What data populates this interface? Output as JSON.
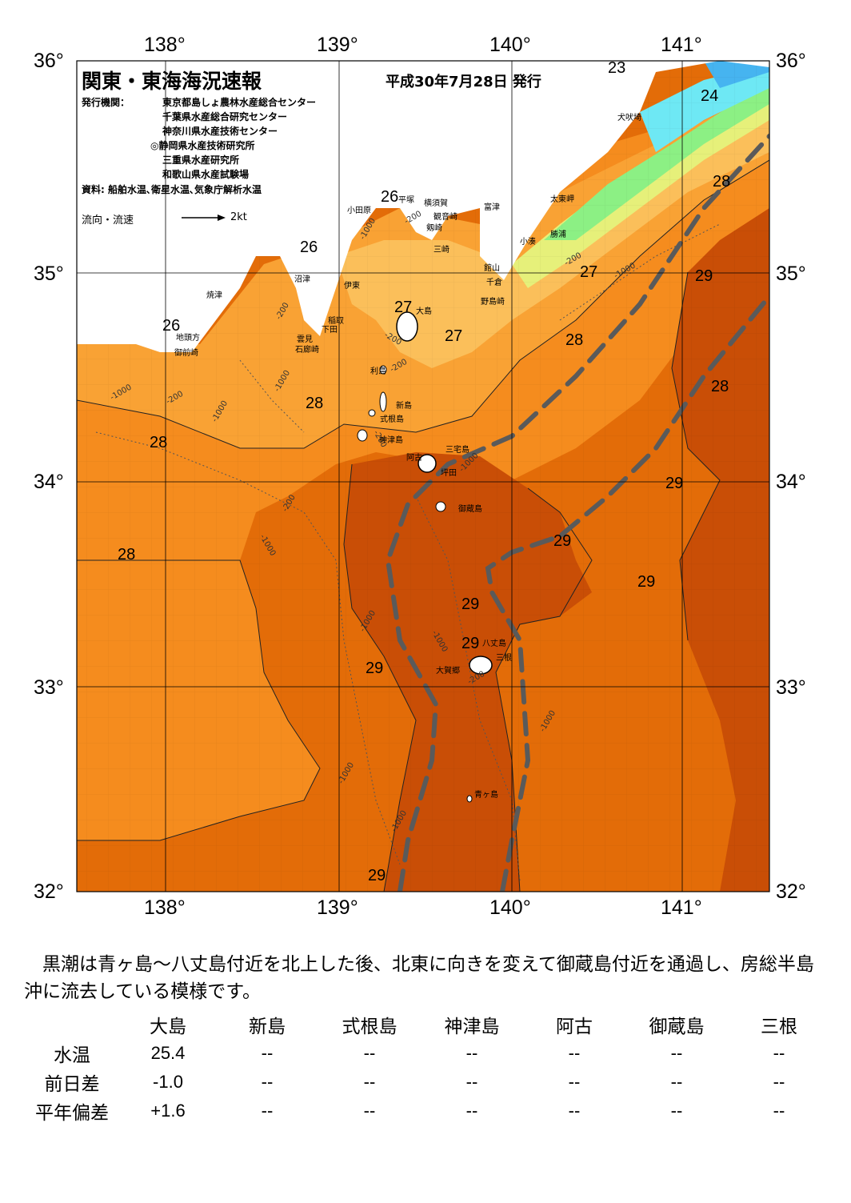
{
  "map": {
    "title": "関東・東海海況速報",
    "issue_date": "平成30年7月28日 発行",
    "issuers_label": "発行機関：",
    "issuers": [
      "東京都島しょ農林水産総合センター",
      "千葉県水産総合研究センター",
      "神奈川県水産技術センター",
      "◎静岡県水産技術研究所",
      "三重県水産研究所",
      "和歌山県水産試験場"
    ],
    "sources": "資料: 船舶水温､衛星水温､気象庁解析水温",
    "flow_legend": "流向・流速",
    "flow_scale": "2kt",
    "lon_labels": [
      "138°",
      "139°",
      "140°",
      "141°"
    ],
    "lat_labels": [
      "36°",
      "35°",
      "34°",
      "33°",
      "32°"
    ],
    "sst_labels": [
      "23",
      "24",
      "26",
      "26",
      "26",
      "27",
      "27",
      "27",
      "28",
      "28",
      "28",
      "28",
      "28",
      "28",
      "29",
      "29",
      "29",
      "29",
      "29",
      "29",
      "29",
      "29"
    ],
    "depth_labels": [
      "-1000",
      "-200",
      "-1000",
      "-200",
      "-1000",
      "-200",
      "-1000",
      "-200",
      "-1000",
      "-200",
      "-1000",
      "-1000",
      "-1000",
      "-1000",
      "-200",
      "-1000",
      "-1000",
      "-1000",
      "-200",
      "-200",
      "-200"
    ],
    "places": [
      "犬吠埼",
      "太東岬",
      "勝浦",
      "小湊",
      "富津",
      "館山",
      "千倉",
      "野島崎",
      "横須賀",
      "観音崎",
      "剱崎",
      "三崎",
      "平塚",
      "小田原",
      "沼津",
      "焼津",
      "伊東",
      "稲取",
      "下田",
      "雲見",
      "石廊崎",
      "地頭方",
      "御前崎",
      "大島",
      "利島",
      "新島",
      "式根島",
      "神津島",
      "三宅島",
      "阿古",
      "坪田",
      "御蔵島",
      "八丈島",
      "三根",
      "大賀郷",
      "青ヶ島"
    ],
    "colors": {
      "t23": "#46b4f0",
      "t24": "#6ee8f4",
      "t25": "#8cf084",
      "t26": "#e6f07a",
      "t27": "#fbbf5a",
      "t28": "#f9a234",
      "t28b": "#f58c1e",
      "t29": "#e36c08",
      "t29b": "#c94e06",
      "kuroshio": "#5a5a5a",
      "land": "#ffffff"
    }
  },
  "description": "黒潮は青ヶ島～八丈島付近を北上した後、北東に向きを変えて御蔵島付近を通過し、房総半島沖に流去している模様です。",
  "table": {
    "columns": [
      "大島",
      "新島",
      "式根島",
      "神津島",
      "阿古",
      "御蔵島",
      "三根"
    ],
    "rows": [
      {
        "label": "水温",
        "values": [
          "25.4",
          "--",
          "--",
          "--",
          "--",
          "--",
          "--"
        ]
      },
      {
        "label": "前日差",
        "values": [
          "-1.0",
          "--",
          "--",
          "--",
          "--",
          "--",
          "--"
        ]
      },
      {
        "label": "平年偏差",
        "values": [
          "+1.6",
          "--",
          "--",
          "--",
          "--",
          "--",
          "--"
        ]
      }
    ]
  }
}
